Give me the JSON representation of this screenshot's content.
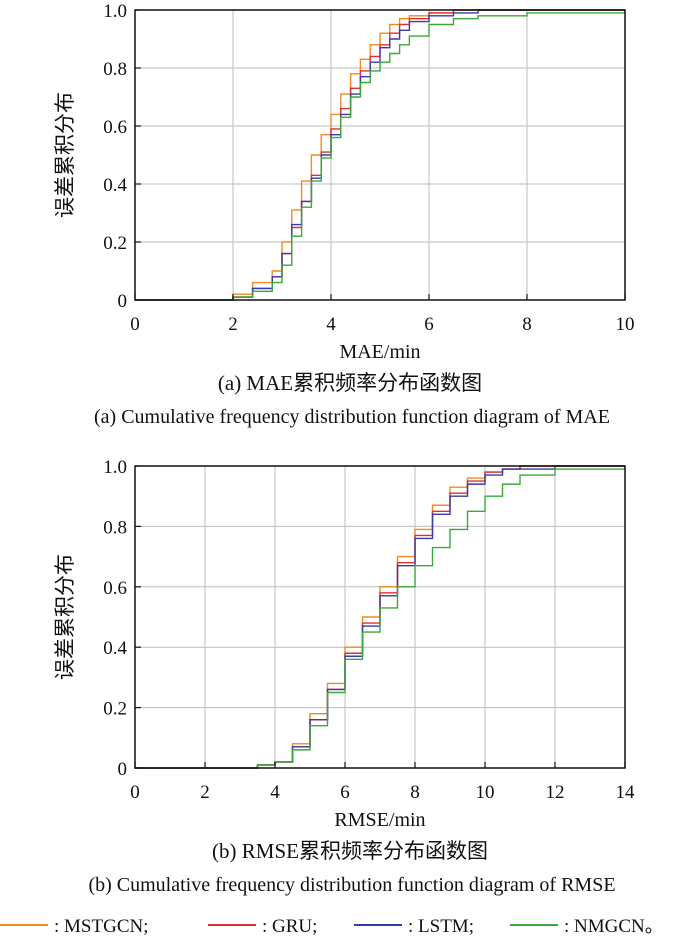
{
  "chart_data": [
    {
      "type": "line",
      "subplot": "a",
      "xlabel": "MAE/min",
      "ylabel": "误差累积分布",
      "xlim": [
        0,
        10
      ],
      "ylim": [
        0,
        1.0
      ],
      "xticks": [
        "0",
        "2",
        "4",
        "6",
        "8",
        "10"
      ],
      "yticks": [
        "0",
        "0.2",
        "0.4",
        "0.6",
        "0.8",
        "1.0"
      ],
      "grid": true,
      "caption_cn": "(a) MAE累积频率分布函数图",
      "caption_en": "(a) Cumulative frequency distribution function diagram of MAE",
      "series": [
        {
          "name": "MSTGCN",
          "color": "#f08a24",
          "x": [
            0,
            1.6,
            2.0,
            2.4,
            2.8,
            3.0,
            3.2,
            3.4,
            3.6,
            3.8,
            4.0,
            4.2,
            4.4,
            4.6,
            4.8,
            5.0,
            5.2,
            5.4,
            5.6,
            6.0,
            6.5,
            7.0,
            8.0,
            10.0
          ],
          "y": [
            0,
            0,
            0.02,
            0.06,
            0.1,
            0.2,
            0.31,
            0.41,
            0.5,
            0.57,
            0.64,
            0.71,
            0.78,
            0.83,
            0.88,
            0.92,
            0.95,
            0.97,
            0.98,
            0.99,
            1.0,
            1.0,
            1.0,
            1.0
          ]
        },
        {
          "name": "GRU",
          "color": "#e03030",
          "x": [
            0,
            1.6,
            2.0,
            2.4,
            2.8,
            3.0,
            3.2,
            3.4,
            3.6,
            3.8,
            4.0,
            4.2,
            4.4,
            4.6,
            4.8,
            5.0,
            5.2,
            5.4,
            5.6,
            6.0,
            6.5,
            7.0,
            8.0,
            10.0
          ],
          "y": [
            0,
            0,
            0.01,
            0.04,
            0.08,
            0.16,
            0.25,
            0.34,
            0.43,
            0.51,
            0.59,
            0.66,
            0.73,
            0.79,
            0.84,
            0.88,
            0.92,
            0.95,
            0.97,
            0.99,
            1.0,
            1.0,
            1.0,
            1.0
          ]
        },
        {
          "name": "LSTM",
          "color": "#3a3aa8",
          "x": [
            0,
            1.6,
            2.0,
            2.4,
            2.8,
            3.0,
            3.2,
            3.4,
            3.6,
            3.8,
            4.0,
            4.2,
            4.4,
            4.6,
            4.8,
            5.0,
            5.2,
            5.4,
            5.6,
            6.0,
            6.5,
            7.0,
            8.0,
            10.0
          ],
          "y": [
            0,
            0,
            0.01,
            0.04,
            0.08,
            0.16,
            0.26,
            0.34,
            0.42,
            0.5,
            0.57,
            0.64,
            0.71,
            0.77,
            0.82,
            0.87,
            0.9,
            0.93,
            0.96,
            0.98,
            0.99,
            1.0,
            1.0,
            1.0
          ]
        },
        {
          "name": "NMGCN",
          "color": "#3aa83a",
          "x": [
            0,
            1.6,
            2.0,
            2.4,
            2.8,
            3.0,
            3.2,
            3.4,
            3.6,
            3.8,
            4.0,
            4.2,
            4.4,
            4.6,
            4.8,
            5.0,
            5.2,
            5.4,
            5.6,
            6.0,
            6.5,
            7.0,
            8.0,
            9.0,
            10.0
          ],
          "y": [
            0,
            0,
            0.01,
            0.03,
            0.06,
            0.12,
            0.22,
            0.32,
            0.41,
            0.49,
            0.56,
            0.63,
            0.7,
            0.75,
            0.79,
            0.82,
            0.85,
            0.88,
            0.91,
            0.95,
            0.97,
            0.98,
            0.99,
            0.99,
            1.0
          ]
        }
      ]
    },
    {
      "type": "line",
      "subplot": "b",
      "xlabel": "RMSE/min",
      "ylabel": "误差累积分布",
      "xlim": [
        0,
        14
      ],
      "ylim": [
        0,
        1.0
      ],
      "xticks": [
        "0",
        "2",
        "4",
        "6",
        "8",
        "10",
        "12",
        "14"
      ],
      "yticks": [
        "0",
        "0.2",
        "0.4",
        "0.6",
        "0.8",
        "1.0"
      ],
      "grid": true,
      "caption_cn": "(b) RMSE累积频率分布函数图",
      "caption_en": "(b) Cumulative frequency distribution function diagram of RMSE",
      "series": [
        {
          "name": "MSTGCN",
          "color": "#f08a24",
          "x": [
            0,
            2.6,
            3.5,
            4.0,
            4.5,
            5.0,
            5.5,
            6.0,
            6.5,
            7.0,
            7.5,
            8.0,
            8.5,
            9.0,
            9.5,
            10.0,
            10.5,
            11.0,
            12.0,
            14.0
          ],
          "y": [
            0,
            0,
            0.01,
            0.02,
            0.08,
            0.18,
            0.28,
            0.4,
            0.5,
            0.6,
            0.7,
            0.79,
            0.87,
            0.93,
            0.96,
            0.98,
            0.99,
            1.0,
            1.0,
            1.0
          ]
        },
        {
          "name": "GRU",
          "color": "#e03030",
          "x": [
            0,
            2.6,
            3.5,
            4.0,
            4.5,
            5.0,
            5.5,
            6.0,
            6.5,
            7.0,
            7.5,
            8.0,
            8.5,
            9.0,
            9.5,
            10.0,
            10.5,
            11.0,
            12.0,
            14.0
          ],
          "y": [
            0,
            0,
            0.01,
            0.02,
            0.07,
            0.16,
            0.26,
            0.38,
            0.48,
            0.58,
            0.68,
            0.77,
            0.85,
            0.91,
            0.95,
            0.98,
            0.99,
            1.0,
            1.0,
            1.0
          ]
        },
        {
          "name": "LSTM",
          "color": "#3a3aa8",
          "x": [
            0,
            2.6,
            3.5,
            4.0,
            4.5,
            5.0,
            5.5,
            6.0,
            6.5,
            7.0,
            7.5,
            8.0,
            8.5,
            9.0,
            9.5,
            10.0,
            10.5,
            11.0,
            12.0,
            14.0
          ],
          "y": [
            0,
            0,
            0.01,
            0.02,
            0.07,
            0.16,
            0.26,
            0.37,
            0.47,
            0.57,
            0.67,
            0.76,
            0.84,
            0.9,
            0.94,
            0.97,
            0.99,
            0.99,
            1.0,
            1.0
          ]
        },
        {
          "name": "NMGCN",
          "color": "#3aa83a",
          "x": [
            0,
            2.6,
            3.5,
            4.0,
            4.5,
            5.0,
            5.5,
            6.0,
            6.5,
            7.0,
            7.5,
            8.0,
            8.5,
            9.0,
            9.5,
            10.0,
            10.5,
            11.0,
            12.0,
            13.0,
            14.0
          ],
          "y": [
            0,
            0,
            0.01,
            0.02,
            0.06,
            0.14,
            0.25,
            0.36,
            0.45,
            0.53,
            0.6,
            0.67,
            0.73,
            0.79,
            0.85,
            0.9,
            0.94,
            0.97,
            0.99,
            0.99,
            1.0
          ]
        }
      ]
    }
  ],
  "legend": {
    "items": [
      {
        "label": ": MSTGCN;",
        "color": "#f08a24"
      },
      {
        "label": ": GRU;",
        "color": "#e03030"
      },
      {
        "label": ": LSTM;",
        "color": "#3a3aa8"
      },
      {
        "label": ": NMGCN。",
        "color": "#3aa83a"
      }
    ]
  }
}
